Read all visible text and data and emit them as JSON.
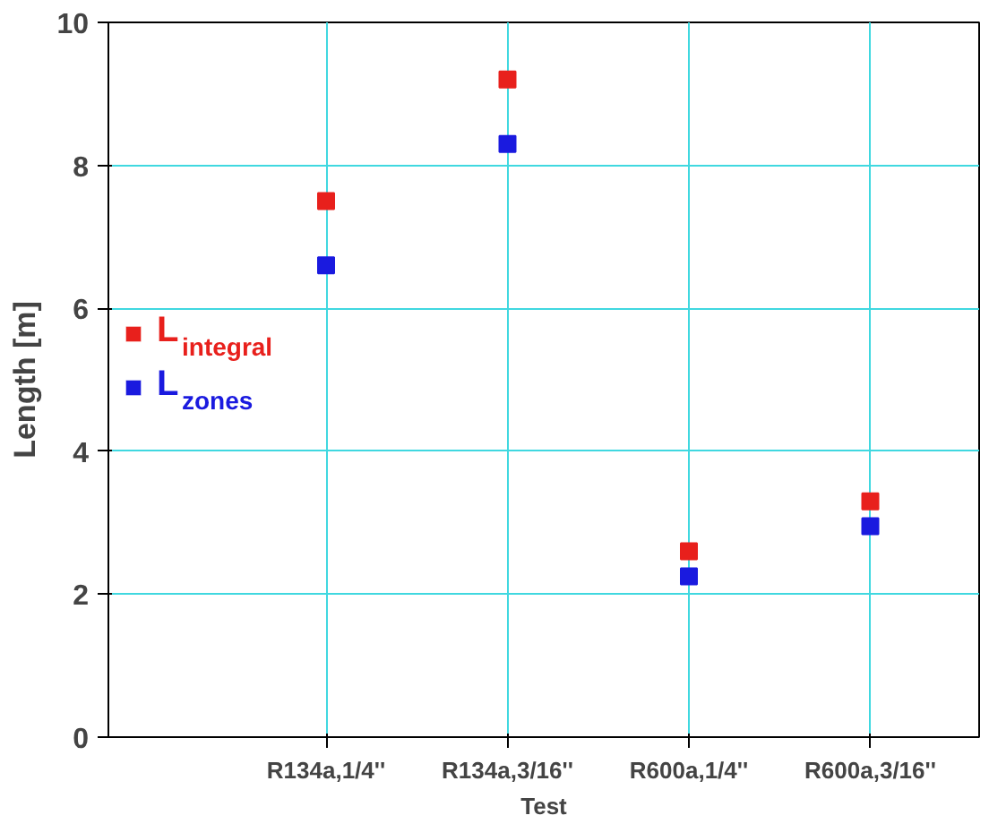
{
  "chart_data": {
    "type": "scatter",
    "xlabel": "Test",
    "ylabel": "Length [m]",
    "categories": [
      "R134a,1/4''",
      "R134a,3/16''",
      "R600a,1/4''",
      "R600a,3/16''"
    ],
    "ylim": [
      0,
      10
    ],
    "yticks": [
      0,
      2,
      4,
      6,
      8,
      10
    ],
    "series": [
      {
        "name": "L$_{integral}$",
        "color": "#e8201c",
        "values": [
          7.5,
          9.2,
          2.6,
          3.3
        ]
      },
      {
        "name": "L$_{zones}$",
        "color": "#1a1adf",
        "values": [
          6.6,
          8.3,
          2.25,
          2.95
        ]
      }
    ],
    "marker": "square",
    "grid": true,
    "legend": "left"
  }
}
